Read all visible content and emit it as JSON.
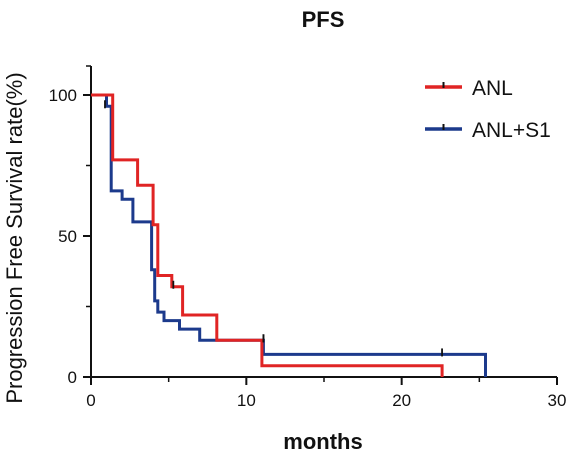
{
  "chart_data": {
    "type": "line",
    "step": true,
    "title": "PFS",
    "xlabel": "months",
    "ylabel": "Progression Free Survival rate(%)",
    "xlim": [
      0,
      30
    ],
    "ylim": [
      0,
      100
    ],
    "xticks": [
      0,
      10,
      20,
      30
    ],
    "yticks": [
      0,
      50,
      100
    ],
    "grid": false,
    "legend": "top-right",
    "series": [
      {
        "name": "ANL",
        "color": "#e02424",
        "x": [
          0,
          1.4,
          1.4,
          3,
          3,
          4,
          4,
          4.3,
          4.3,
          5.2,
          5.2,
          5.9,
          5.9,
          8.1,
          8.1,
          11,
          11,
          22.6,
          22.6
        ],
        "y": [
          100,
          100,
          77,
          77,
          68,
          68,
          54,
          54,
          36,
          36,
          32,
          32,
          22,
          22,
          13,
          13,
          4,
          4,
          0
        ],
        "censor": [
          [
            5.3,
            32
          ],
          [
            11.1,
            13
          ]
        ]
      },
      {
        "name": "ANL+S1",
        "color": "#1c3a8c",
        "x": [
          0,
          1,
          1,
          1.3,
          1.3,
          2,
          2,
          2.7,
          2.7,
          3.9,
          3.9,
          4.1,
          4.1,
          4.3,
          4.3,
          4.7,
          4.7,
          5.7,
          5.7,
          7,
          7,
          11.1,
          11.1,
          25.4,
          25.4
        ],
        "y": [
          100,
          100,
          96,
          96,
          66,
          66,
          63,
          63,
          55,
          55,
          38,
          38,
          27,
          27,
          23,
          23,
          20,
          20,
          17,
          17,
          13,
          13,
          8,
          8,
          0
        ],
        "censor": [
          [
            0.9,
            96
          ],
          [
            11.1,
            13
          ],
          [
            22.6,
            8
          ]
        ]
      }
    ]
  }
}
